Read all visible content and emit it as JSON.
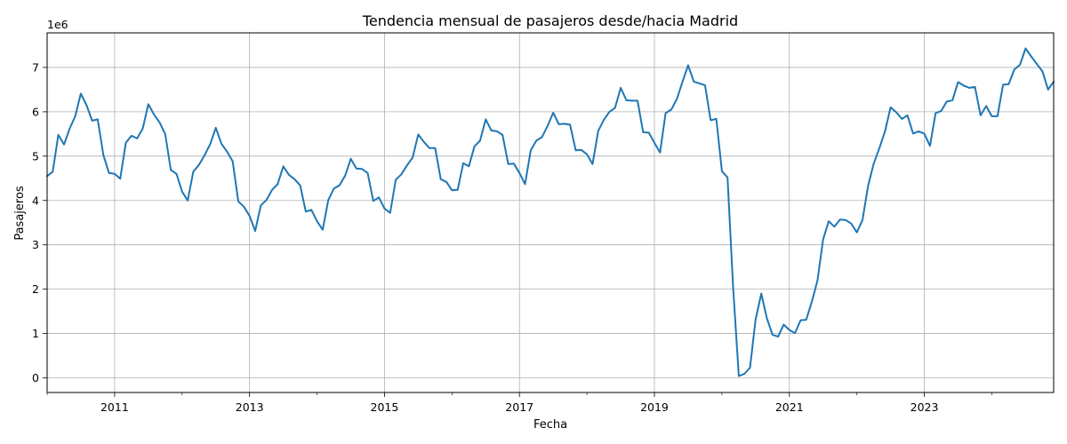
{
  "chart_data": {
    "type": "line",
    "title": "Tendencia mensual de pasajeros desde/hacia Madrid",
    "xlabel": "Fecha",
    "ylabel": "Pasajeros",
    "y_multiplier_label": "1e6",
    "grid": true,
    "x_tick_labels": [
      "2011",
      "2013",
      "2015",
      "2017",
      "2019",
      "2021",
      "2023"
    ],
    "y_tick_labels": [
      "0",
      "1",
      "2",
      "3",
      "4",
      "5",
      "6",
      "7"
    ],
    "xlim": [
      "2010-01",
      "2024-12"
    ],
    "ylim": [
      -330000,
      7780000
    ],
    "line_color": "#1f77b4",
    "series": [
      {
        "x": [
          "2010-01",
          "2010-02",
          "2010-03",
          "2010-04",
          "2010-05",
          "2010-06",
          "2010-07",
          "2010-08",
          "2010-09",
          "2010-10",
          "2010-11",
          "2010-12",
          "2011-01",
          "2011-02",
          "2011-03",
          "2011-04",
          "2011-05",
          "2011-06",
          "2011-07",
          "2011-08",
          "2011-09",
          "2011-10",
          "2011-11",
          "2011-12",
          "2012-01",
          "2012-02",
          "2012-03",
          "2012-04",
          "2012-05",
          "2012-06",
          "2012-07",
          "2012-08",
          "2012-09",
          "2012-10",
          "2012-11",
          "2012-12",
          "2013-01",
          "2013-02",
          "2013-03",
          "2013-04",
          "2013-05",
          "2013-06",
          "2013-07",
          "2013-08",
          "2013-09",
          "2013-10",
          "2013-11",
          "2013-12",
          "2014-01",
          "2014-02",
          "2014-03",
          "2014-04",
          "2014-05",
          "2014-06",
          "2014-07",
          "2014-08",
          "2014-09",
          "2014-10",
          "2014-11",
          "2014-12",
          "2015-01",
          "2015-02",
          "2015-03",
          "2015-04",
          "2015-05",
          "2015-06",
          "2015-07",
          "2015-08",
          "2015-09",
          "2015-10",
          "2015-11",
          "2015-12",
          "2016-01",
          "2016-02",
          "2016-03",
          "2016-04",
          "2016-05",
          "2016-06",
          "2016-07",
          "2016-08",
          "2016-09",
          "2016-10",
          "2016-11",
          "2016-12",
          "2017-01",
          "2017-02",
          "2017-03",
          "2017-04",
          "2017-05",
          "2017-06",
          "2017-07",
          "2017-08",
          "2017-09",
          "2017-10",
          "2017-11",
          "2017-12",
          "2018-01",
          "2018-02",
          "2018-03",
          "2018-04",
          "2018-05",
          "2018-06",
          "2018-07",
          "2018-08",
          "2018-09",
          "2018-10",
          "2018-11",
          "2018-12",
          "2019-01",
          "2019-02",
          "2019-03",
          "2019-04",
          "2019-05",
          "2019-06",
          "2019-07",
          "2019-08",
          "2019-09",
          "2019-10",
          "2019-11",
          "2019-12",
          "2020-01",
          "2020-02",
          "2020-03",
          "2020-04",
          "2020-05",
          "2020-06",
          "2020-07",
          "2020-08",
          "2020-09",
          "2020-10",
          "2020-11",
          "2020-12",
          "2021-01",
          "2021-02",
          "2021-03",
          "2021-04",
          "2021-05",
          "2021-06",
          "2021-07",
          "2021-08",
          "2021-09",
          "2021-10",
          "2021-11",
          "2021-12",
          "2022-01",
          "2022-02",
          "2022-03",
          "2022-04",
          "2022-05",
          "2022-06",
          "2022-07",
          "2022-08",
          "2022-09",
          "2022-10",
          "2022-11",
          "2022-12",
          "2023-01",
          "2023-02",
          "2023-03",
          "2023-04",
          "2023-05",
          "2023-06",
          "2023-07",
          "2023-08",
          "2023-09",
          "2023-10",
          "2023-11",
          "2023-12",
          "2024-01",
          "2024-02",
          "2024-03",
          "2024-04",
          "2024-05",
          "2024-06",
          "2024-07",
          "2024-08",
          "2024-09",
          "2024-10",
          "2024-11",
          "2024-12"
        ],
        "y": [
          4550000,
          4650000,
          5480000,
          5260000,
          5620000,
          5900000,
          6410000,
          6150000,
          5800000,
          5830000,
          5030000,
          4620000,
          4600000,
          4490000,
          5300000,
          5460000,
          5400000,
          5620000,
          6170000,
          5940000,
          5760000,
          5500000,
          4690000,
          4600000,
          4200000,
          4000000,
          4650000,
          4800000,
          5020000,
          5270000,
          5640000,
          5280000,
          5100000,
          4880000,
          3980000,
          3860000,
          3650000,
          3310000,
          3890000,
          4010000,
          4240000,
          4370000,
          4770000,
          4580000,
          4480000,
          4340000,
          3750000,
          3790000,
          3530000,
          3340000,
          4010000,
          4270000,
          4340000,
          4560000,
          4940000,
          4720000,
          4710000,
          4620000,
          3990000,
          4070000,
          3820000,
          3720000,
          4470000,
          4590000,
          4790000,
          4970000,
          5490000,
          5320000,
          5180000,
          5180000,
          4480000,
          4420000,
          4230000,
          4240000,
          4840000,
          4770000,
          5220000,
          5350000,
          5830000,
          5580000,
          5560000,
          5480000,
          4820000,
          4830000,
          4620000,
          4370000,
          5130000,
          5350000,
          5430000,
          5680000,
          5980000,
          5720000,
          5730000,
          5710000,
          5130000,
          5140000,
          5040000,
          4820000,
          5570000,
          5820000,
          6000000,
          6090000,
          6540000,
          6260000,
          6250000,
          6250000,
          5540000,
          5530000,
          5300000,
          5080000,
          5970000,
          6050000,
          6290000,
          6680000,
          7050000,
          6680000,
          6640000,
          6600000,
          5810000,
          5840000,
          4660000,
          4520000,
          2040000,
          40000,
          90000,
          230000,
          1320000,
          1900000,
          1340000,
          970000,
          930000,
          1200000,
          1080000,
          1010000,
          1300000,
          1310000,
          1720000,
          2200000,
          3120000,
          3530000,
          3410000,
          3570000,
          3560000,
          3480000,
          3280000,
          3560000,
          4330000,
          4830000,
          5180000,
          5560000,
          6100000,
          5990000,
          5840000,
          5920000,
          5510000,
          5560000,
          5510000,
          5230000,
          5970000,
          6020000,
          6230000,
          6260000,
          6670000,
          6590000,
          6540000,
          6560000,
          5920000,
          6130000,
          5900000,
          5900000,
          6610000,
          6620000,
          6950000,
          7060000,
          7430000,
          7250000,
          7080000,
          6910000,
          6500000,
          6680000
        ]
      }
    ]
  }
}
